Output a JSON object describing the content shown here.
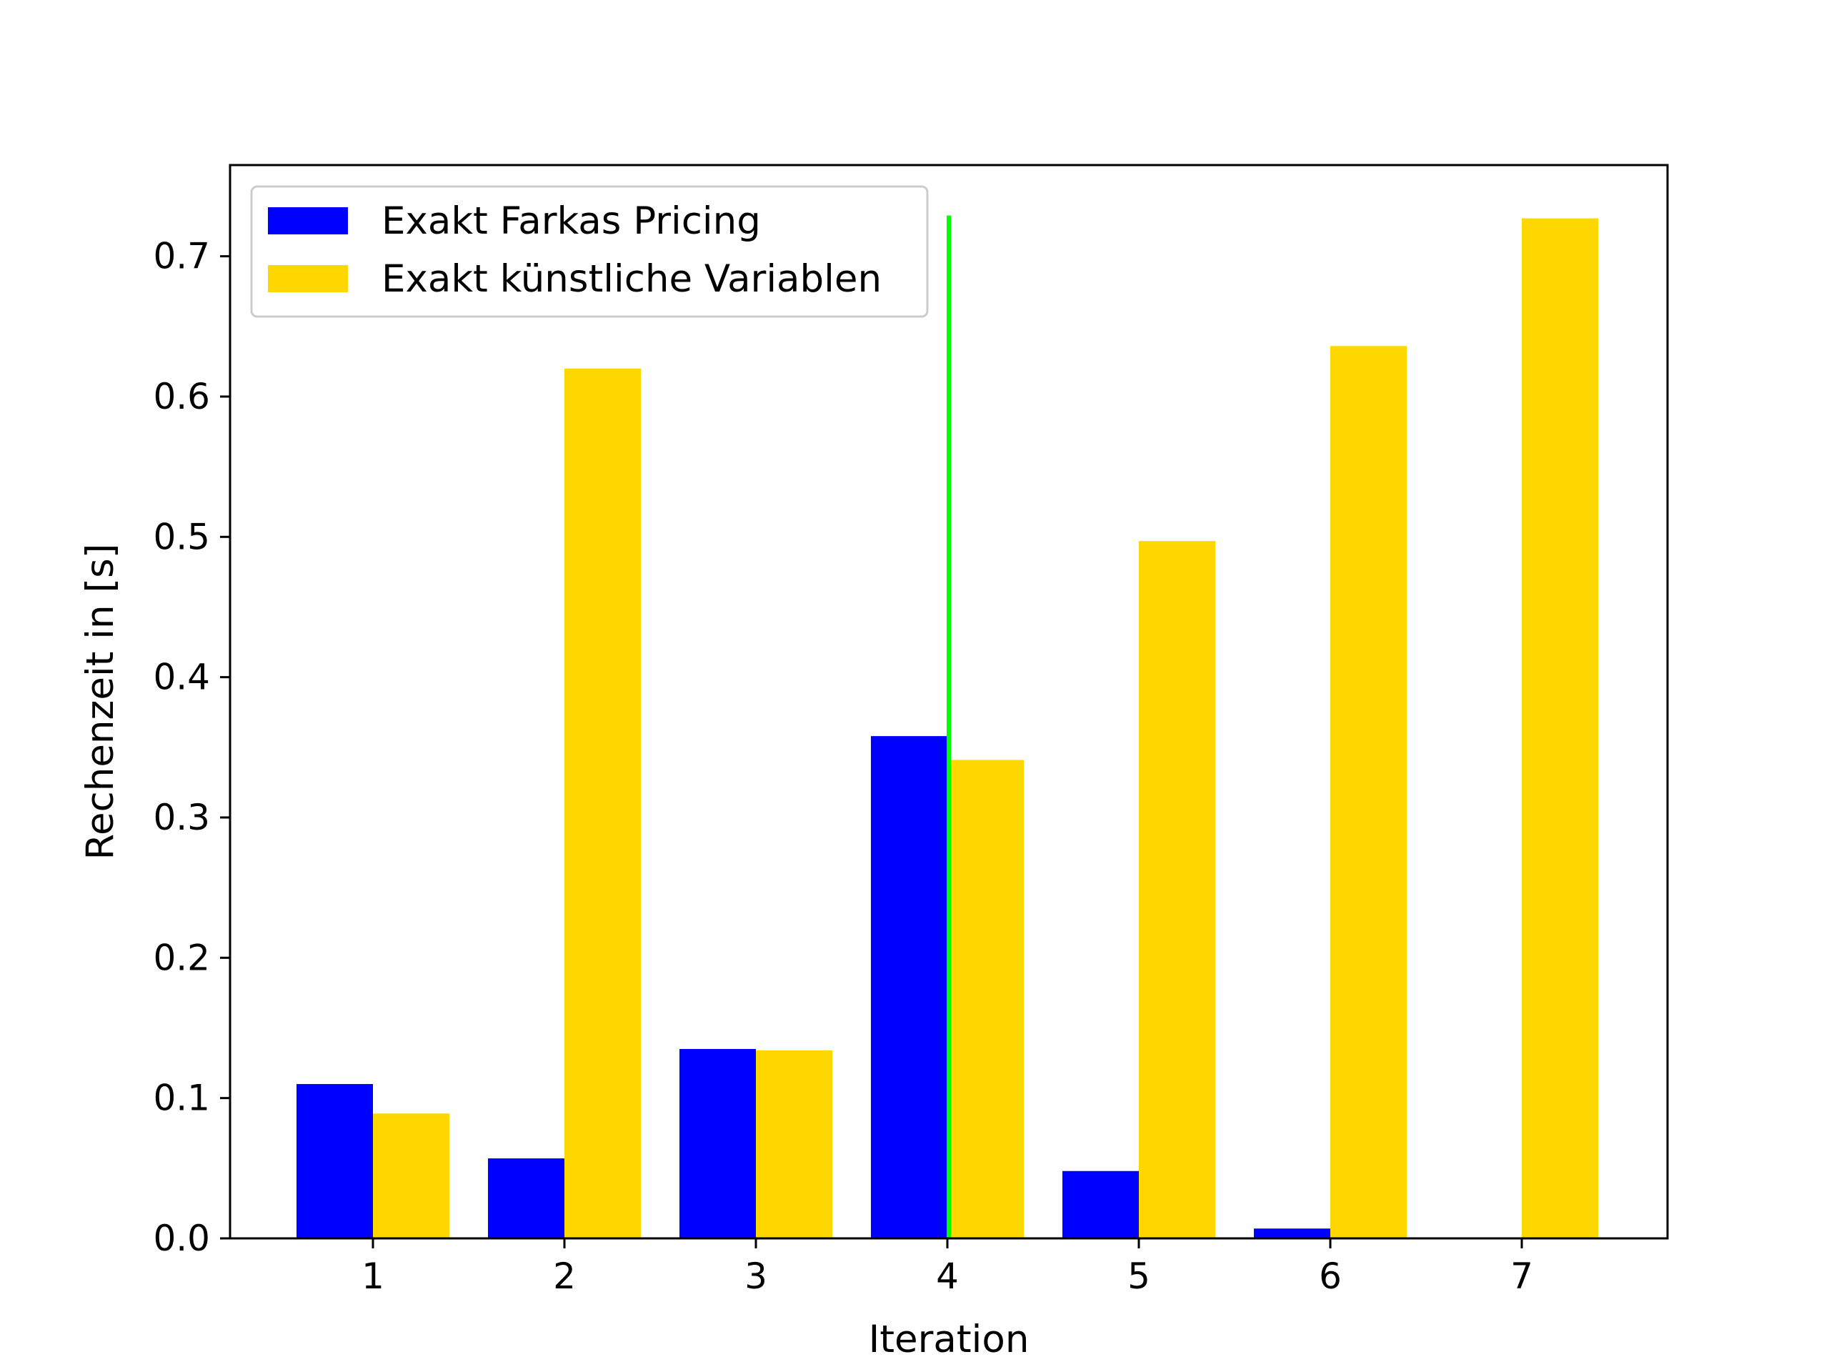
{
  "chart_data": {
    "type": "bar",
    "xlabel": "Iteration",
    "ylabel": "Rechenzeit in [s]",
    "categories": [
      "1",
      "2",
      "3",
      "4",
      "5",
      "6",
      "7"
    ],
    "series": [
      {
        "name": "Exakt Farkas Pricing",
        "color": "#0000ff",
        "values": [
          0.11,
          0.057,
          0.135,
          0.358,
          0.048,
          0.007,
          0.0
        ]
      },
      {
        "name": "Exakt künstliche Variablen",
        "color": "#ffd700",
        "values": [
          0.089,
          0.62,
          0.134,
          0.341,
          0.497,
          0.636,
          0.727
        ]
      }
    ],
    "ylim": [
      0,
      0.765
    ],
    "yticks": [
      "0.0",
      "0.1",
      "0.2",
      "0.3",
      "0.4",
      "0.5",
      "0.6",
      "0.7"
    ],
    "vline": {
      "x": "4",
      "ymax": 0.729,
      "color": "#00ff00"
    },
    "legend_position": "upper-left",
    "grid": false
  }
}
